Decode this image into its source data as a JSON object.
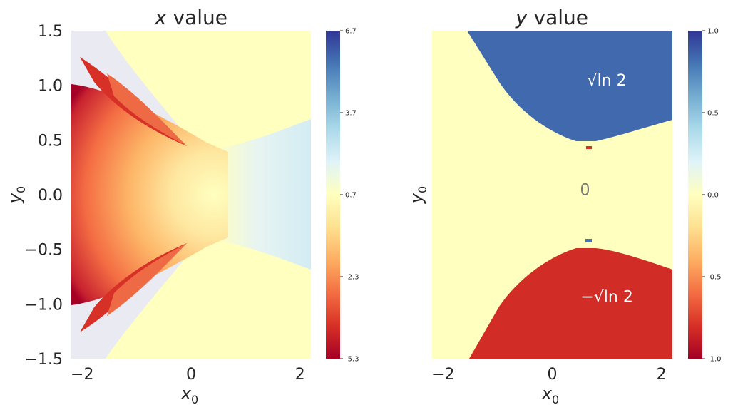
{
  "chart_data": [
    {
      "type": "heatmap",
      "title_var": "x",
      "title_text": " value",
      "xlabel_base": "x",
      "xlabel_sub": "0",
      "ylabel_base": "y",
      "ylabel_sub": "0",
      "xlim": [
        -2.2,
        2.2
      ],
      "ylim": [
        -1.5,
        1.5
      ],
      "xticks": [
        -2,
        0,
        2
      ],
      "xtick_labels": [
        "−2",
        "0",
        "2"
      ],
      "yticks": [
        1.5,
        1.0,
        0.5,
        0.0,
        -0.5,
        -1.0,
        -1.5
      ],
      "ytick_labels": [
        "1.5",
        "1.0",
        "0.5",
        "0.0",
        "−0.5",
        "−1.0",
        "−1.5"
      ],
      "colormap": "RdYlBu",
      "colorbar_range": [
        -5.3,
        6.7
      ],
      "colorbar_ticks": [
        6.7,
        3.7,
        0.7,
        -2.3,
        -5.3
      ],
      "colorbar_tick_labels": [
        "6.7",
        "3.7",
        "0.7",
        "-2.3",
        "-5.3"
      ],
      "background_color": "#eaeaf2"
    },
    {
      "type": "heatmap",
      "title_var": "y",
      "title_text": " value",
      "xlabel_base": "x",
      "xlabel_sub": "0",
      "ylabel_base": "y",
      "ylabel_sub": "0",
      "xlim": [
        -2.2,
        2.2
      ],
      "ylim": [
        -1.5,
        1.5
      ],
      "xticks": [
        -2,
        0,
        2
      ],
      "xtick_labels": [
        "−2",
        "0",
        "2"
      ],
      "colormap": "RdYlBu",
      "colorbar_range": [
        -1.0,
        1.0
      ],
      "colorbar_ticks": [
        1.0,
        0.5,
        0.0,
        -0.5,
        -1.0
      ],
      "colorbar_tick_labels": [
        "1.0",
        "0.5",
        "0.0",
        "-0.5",
        "-1.0"
      ],
      "annotations": [
        {
          "text": "√ln 2",
          "x": 1.0,
          "y": 1.05,
          "color": "#ffffff"
        },
        {
          "text": "0",
          "x": 0.6,
          "y": 0.05,
          "color": "#7a7a7a"
        },
        {
          "text": "−√ln 2",
          "x": 1.0,
          "y": -0.93,
          "color": "#ffffff"
        }
      ],
      "colors": {
        "positive": "#4169ad",
        "zero": "#ffffbf",
        "negative": "#d22c26"
      }
    }
  ]
}
